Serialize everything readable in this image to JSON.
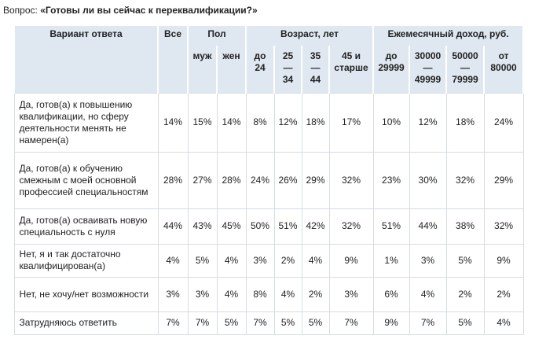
{
  "title": {
    "label": "Вопрос:",
    "question": "«Готовы ли вы сейчас к переквалификации?»"
  },
  "table": {
    "header_top": [
      "Вариант ответа",
      "Все",
      "Пол",
      "Возраст, лет",
      "Ежемесячный доход, руб."
    ],
    "header_sub": [
      "муж",
      "жен",
      "до 24",
      "25 — 34",
      "35 — 44",
      "45 и старше",
      "до 29999",
      "30000 — 49999",
      "50000 — 79999",
      "от 80000"
    ],
    "rows": [
      [
        "Да, готов(а) к повышению квалификации, но сферу деятельности менять не намерен(а)",
        "14%",
        "15%",
        "14%",
        "8%",
        "12%",
        "18%",
        "17%",
        "10%",
        "12%",
        "18%",
        "24%"
      ],
      [
        "Да, готов(а) к обучению смежным с моей основной профессией специальностям",
        "28%",
        "27%",
        "28%",
        "24%",
        "26%",
        "29%",
        "32%",
        "23%",
        "30%",
        "32%",
        "29%"
      ],
      [
        "Да, готов(а) осваивать новую специальность с нуля",
        "44%",
        "43%",
        "45%",
        "50%",
        "51%",
        "42%",
        "32%",
        "51%",
        "44%",
        "38%",
        "32%"
      ],
      [
        "Нет, я и так достаточно квалифицирован(а)",
        "4%",
        "5%",
        "4%",
        "3%",
        "2%",
        "4%",
        "9%",
        "1%",
        "3%",
        "5%",
        "9%"
      ],
      [
        "Нет, не хочу/нет возможности",
        "3%",
        "3%",
        "4%",
        "8%",
        "4%",
        "2%",
        "3%",
        "6%",
        "4%",
        "2%",
        "2%"
      ],
      [
        "Затрудняюсь ответить",
        "7%",
        "7%",
        "5%",
        "7%",
        "5%",
        "5%",
        "7%",
        "9%",
        "7%",
        "5%",
        "4%"
      ]
    ]
  }
}
